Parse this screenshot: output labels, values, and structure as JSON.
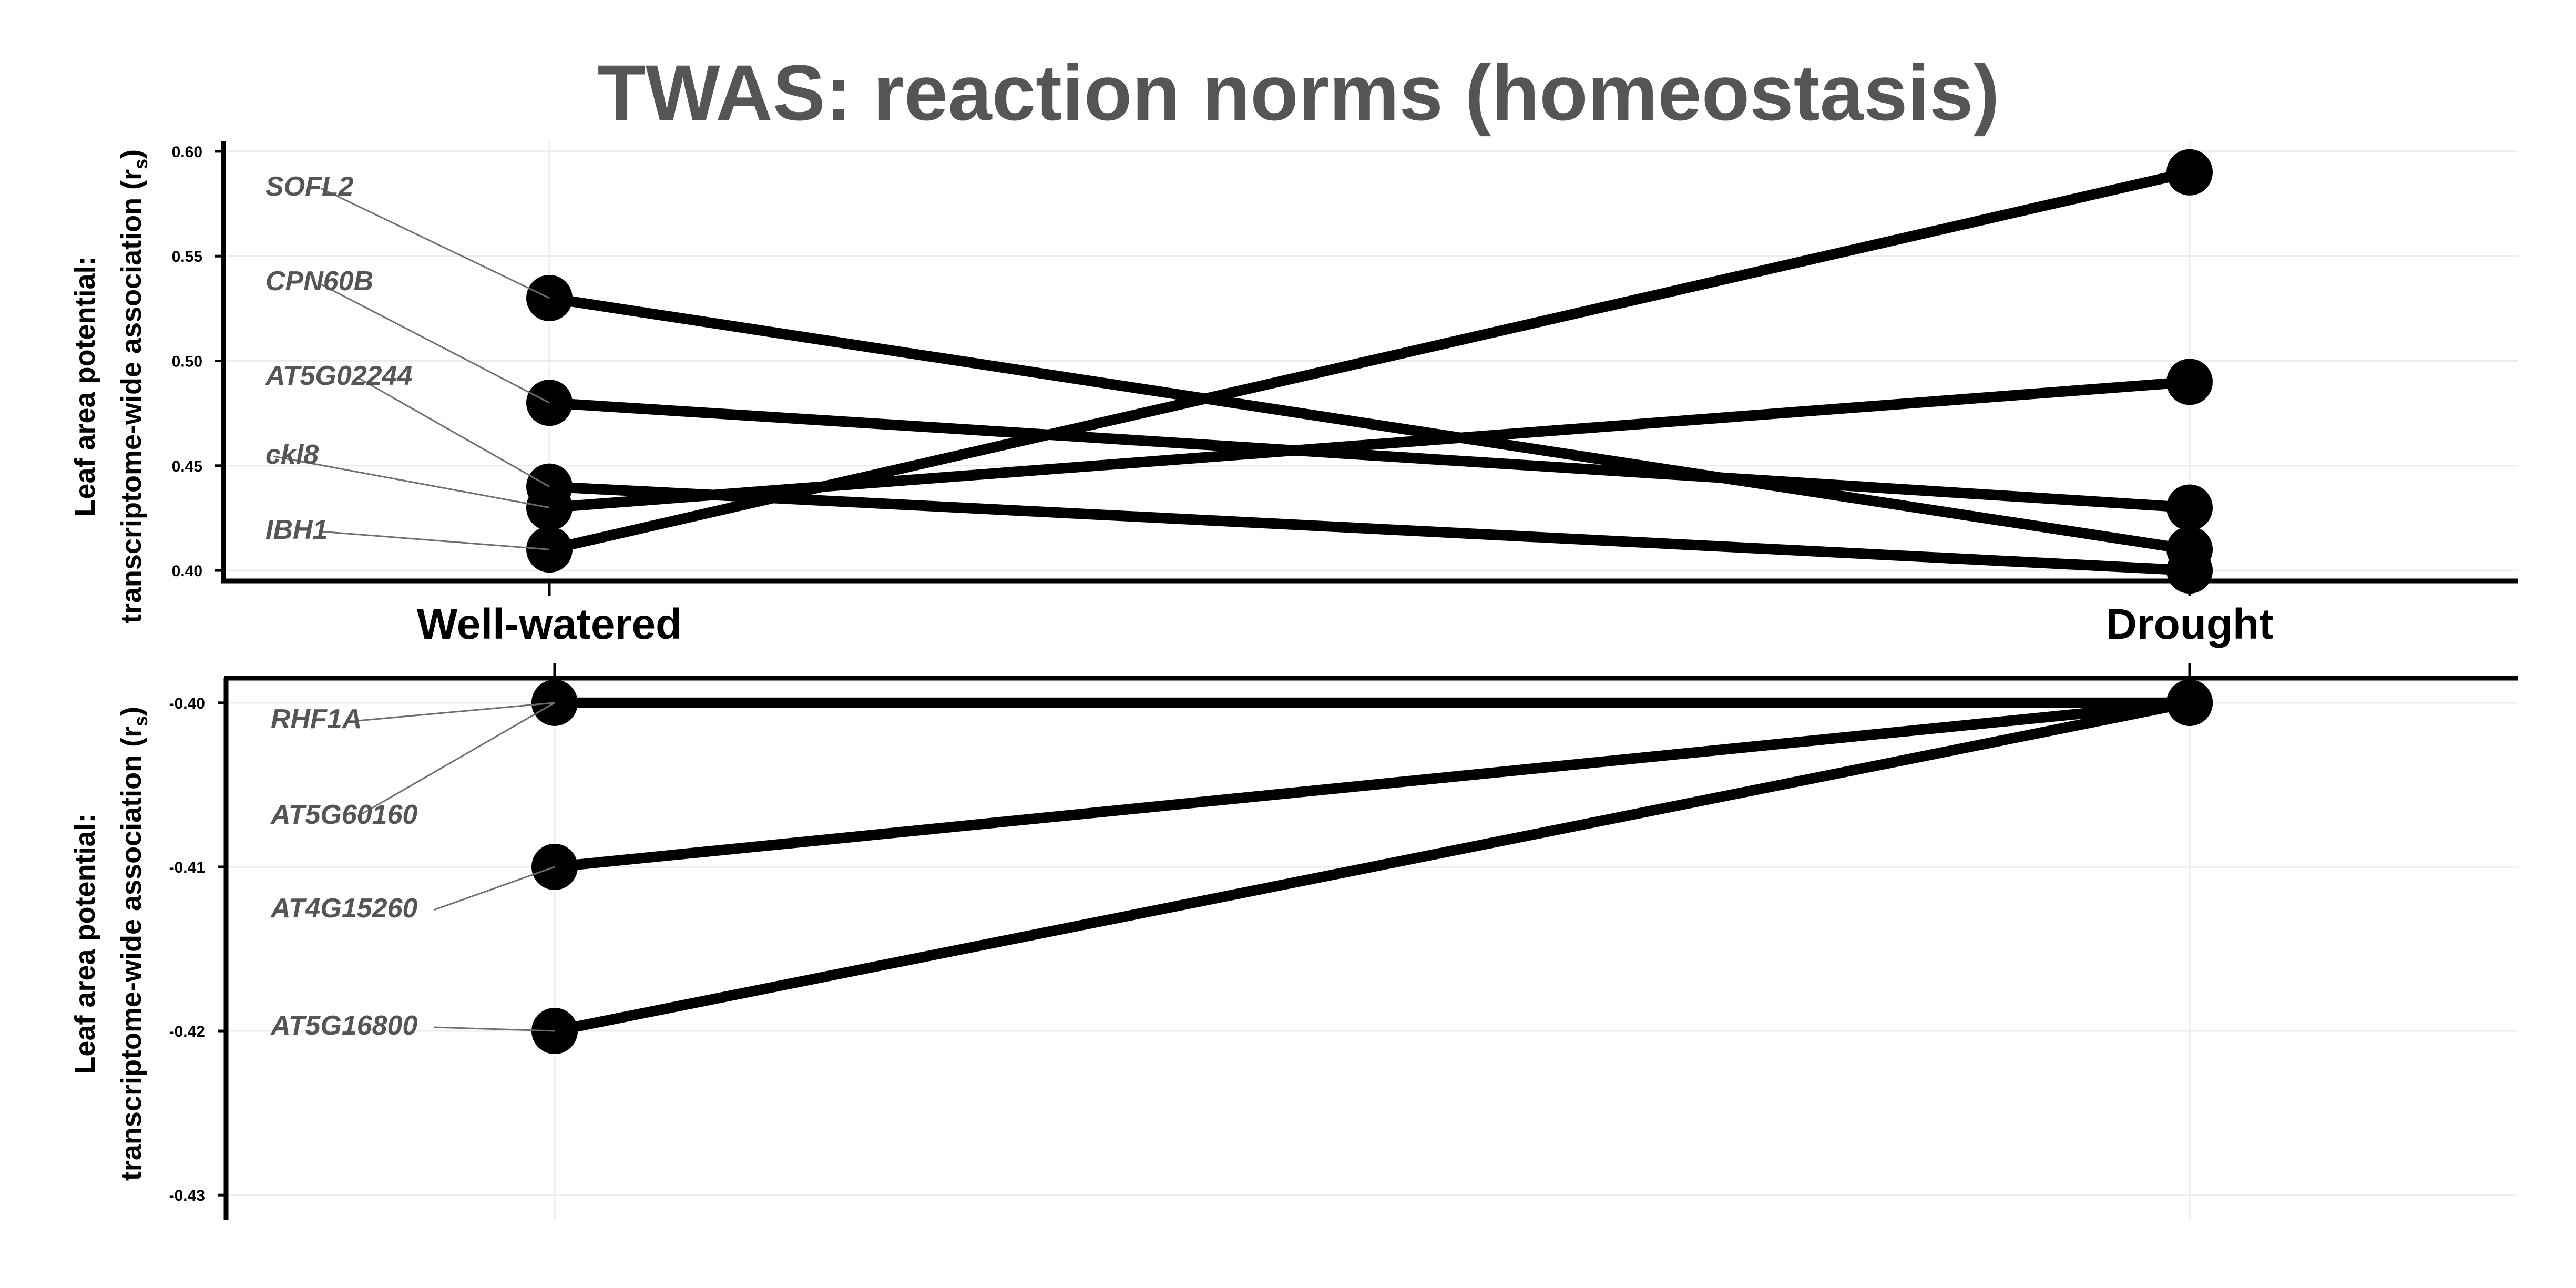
{
  "title": "TWAS: reaction norms (homeostasis)",
  "colors": {
    "title": "#555555",
    "label": "#555555",
    "line": "#000000",
    "grid": "#ececec",
    "leader": "#6e6e6e"
  },
  "chart_data": [
    {
      "type": "line",
      "panel": "top",
      "ylabel_line1": "Leaf area potential:",
      "ylabel_line2": "transcriptome-wide association (r",
      "ylabel_sub": "s",
      "ylabel_close": ")",
      "categories": [
        "Well-watered",
        "Drought"
      ],
      "ylim": [
        0.395,
        0.605
      ],
      "yticks": [
        0.4,
        0.45,
        0.5,
        0.55,
        0.6
      ],
      "ytick_labels": [
        "0.40",
        "0.45",
        "0.50",
        "0.55",
        "0.60"
      ],
      "grid": true,
      "series": [
        {
          "name": "SOFL2",
          "values": [
            0.53,
            0.41
          ]
        },
        {
          "name": "CPN60B",
          "values": [
            0.48,
            0.43
          ]
        },
        {
          "name": "AT5G02244",
          "values": [
            0.44,
            0.4
          ]
        },
        {
          "name": "ckl8",
          "values": [
            0.43,
            0.49
          ]
        },
        {
          "name": "IBH1",
          "values": [
            0.41,
            0.59
          ]
        }
      ]
    },
    {
      "type": "line",
      "panel": "bottom",
      "ylabel_line1": "Leaf area potential:",
      "ylabel_line2": "transcriptome-wide association (r",
      "ylabel_sub": "s",
      "ylabel_close": ")",
      "categories": [
        "Well-watered",
        "Drought"
      ],
      "ylim": [
        -0.4315,
        -0.3985
      ],
      "yticks": [
        -0.4,
        -0.41,
        -0.42,
        -0.43
      ],
      "ytick_labels": [
        "-0.40",
        "-0.41",
        "-0.42",
        "-0.43"
      ],
      "grid": true,
      "series": [
        {
          "name": "RHF1A",
          "values": [
            -0.4,
            -0.4
          ]
        },
        {
          "name": "AT5G60160",
          "values": [
            -0.4,
            -0.4
          ]
        },
        {
          "name": "AT4G15260",
          "values": [
            -0.41,
            -0.4
          ]
        },
        {
          "name": "AT5G16800",
          "values": [
            -0.42,
            -0.4
          ]
        }
      ]
    }
  ]
}
